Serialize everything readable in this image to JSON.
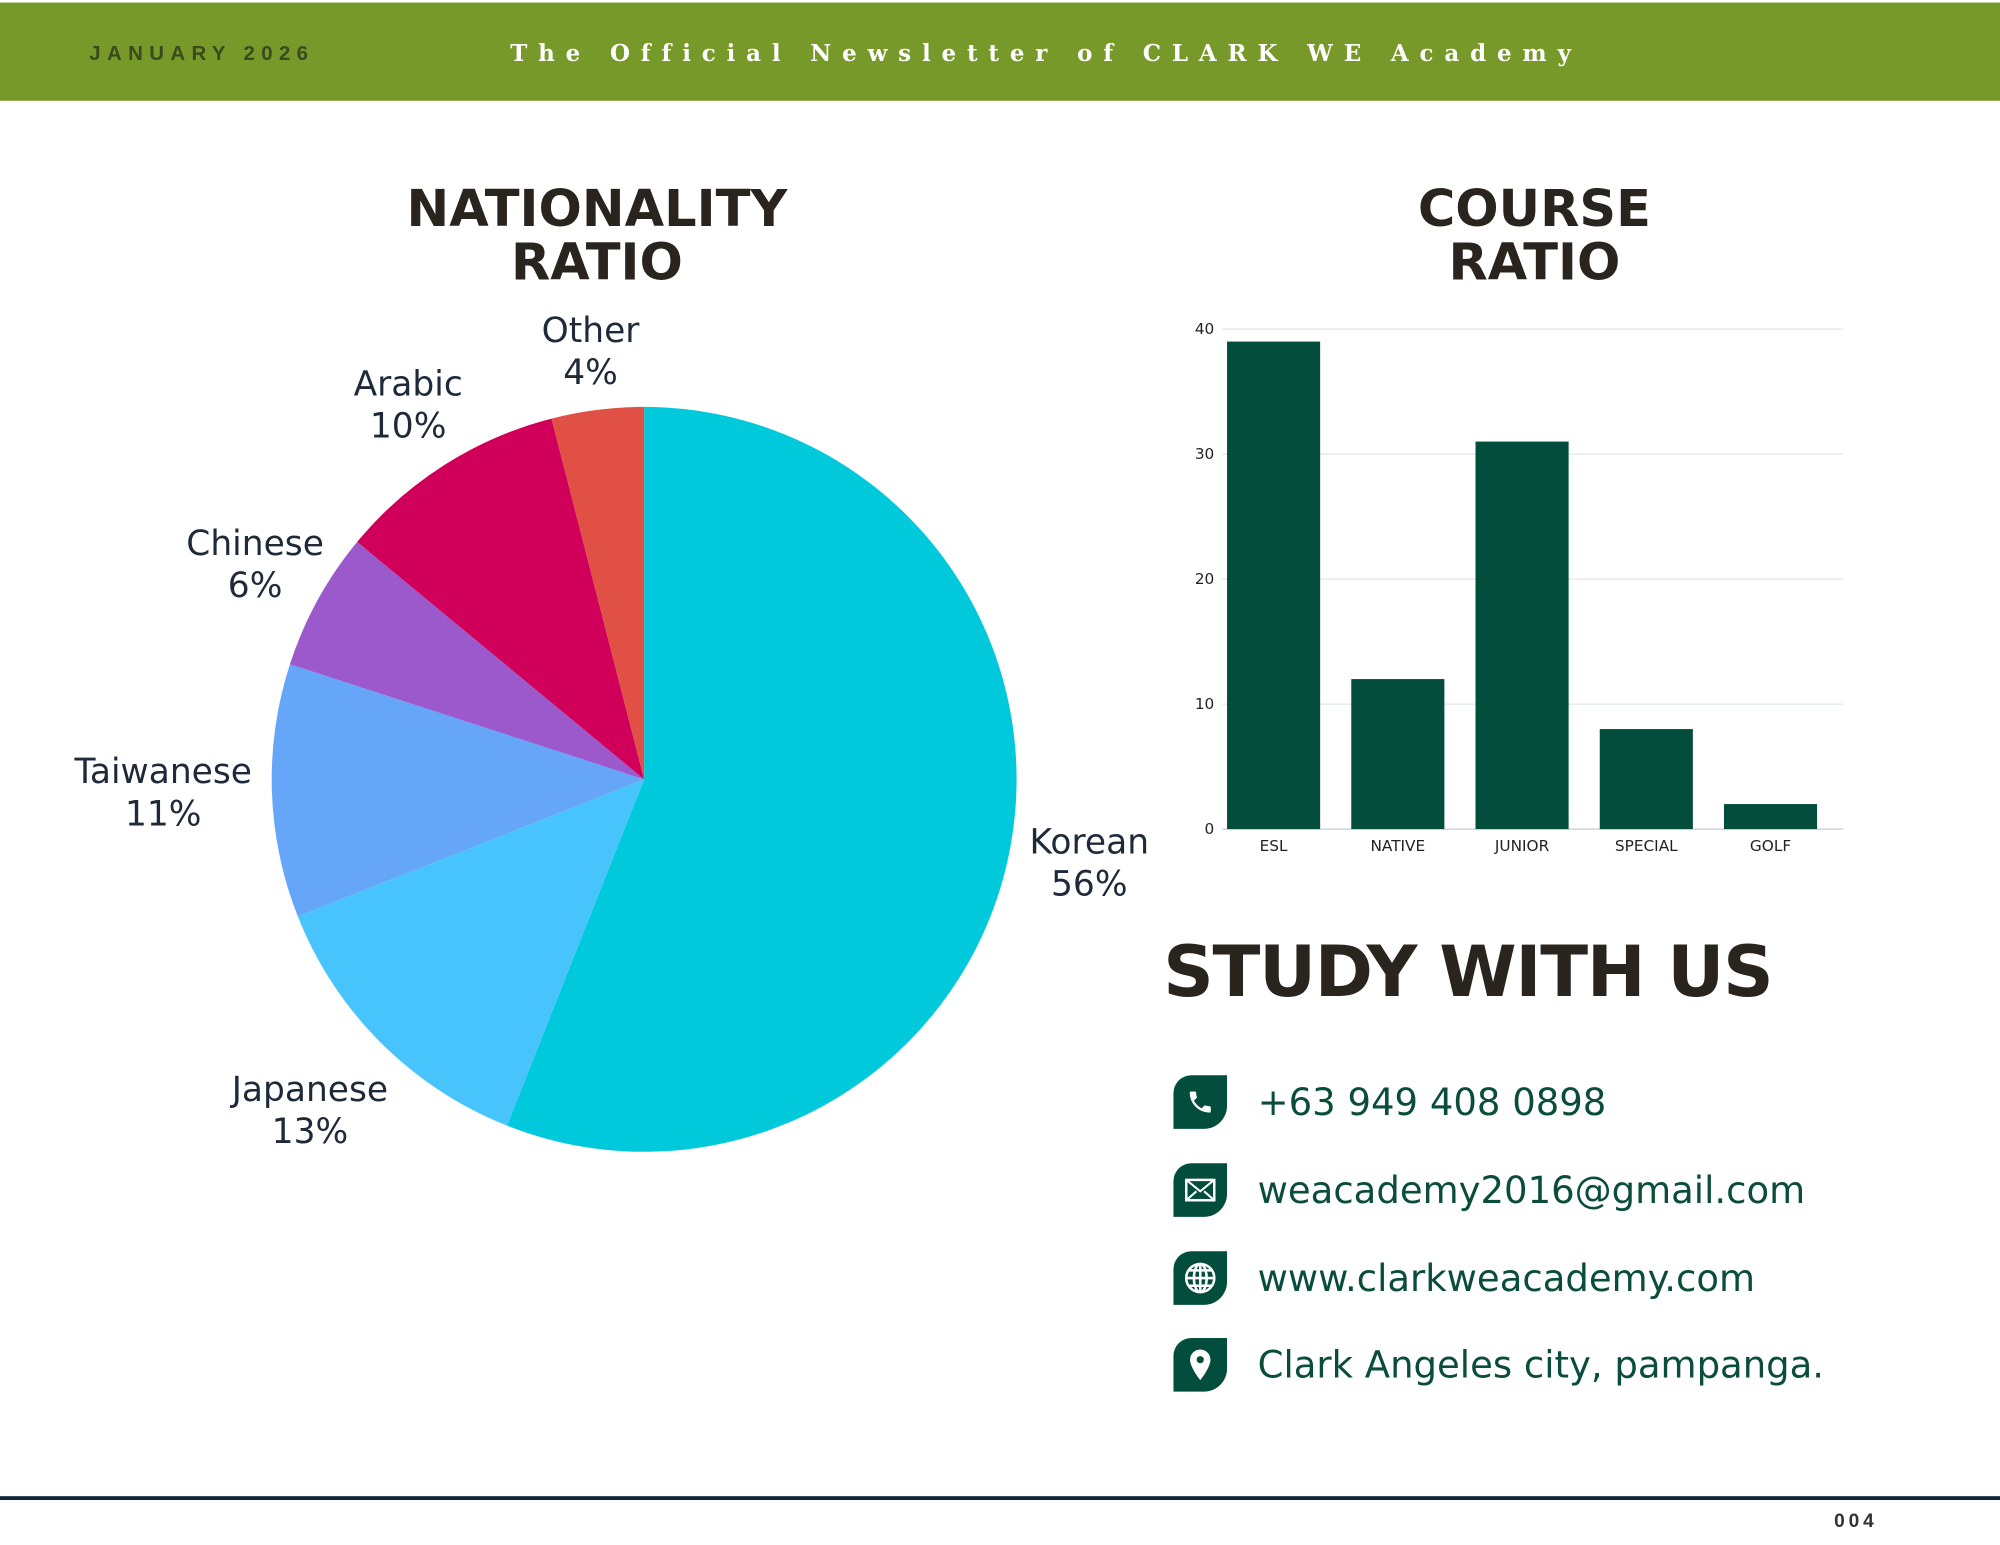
{
  "header": {
    "date": "JANUARY 2026",
    "tagline": "The Official Newsletter of CLARK WE Academy",
    "color": "#76992A"
  },
  "nationality": {
    "title_line1": "NATIONALITY",
    "title_line2": "RATIO"
  },
  "course": {
    "title_line1": "COURSE",
    "title_line2": "RATIO"
  },
  "chart_data": [
    {
      "type": "pie",
      "start": "top",
      "direction": "clockwise",
      "slices": [
        {
          "label": "Korean",
          "value": 56,
          "display": "56%",
          "color": "#00C9DB"
        },
        {
          "label": "Japanese",
          "value": 13,
          "display": "13%",
          "color": "#48C4FC"
        },
        {
          "label": "Taiwanese",
          "value": 11,
          "display": "11%",
          "color": "#65A6F9"
        },
        {
          "label": "Chinese",
          "value": 6,
          "display": "6%",
          "color": "#9B59CC"
        },
        {
          "label": "Arabic",
          "value": 10,
          "display": "10%",
          "color": "#D0005A"
        },
        {
          "label": "Other",
          "value": 4,
          "display": "4%",
          "color": "#E05045"
        }
      ]
    },
    {
      "type": "bar",
      "categories": [
        "ESL",
        "NATIVE",
        "JUNIOR",
        "SPECIAL",
        "GOLF"
      ],
      "values": [
        39,
        12,
        31,
        8,
        2
      ],
      "ylim": [
        0,
        40
      ],
      "yticks": [
        "0",
        "10",
        "20",
        "30",
        "40"
      ],
      "grid": true,
      "color": "#034D3C"
    }
  ],
  "contact": {
    "heading": "STUDY WITH US",
    "items": [
      {
        "icon": "phone-icon",
        "text": "+63 949 408 0898"
      },
      {
        "icon": "mail-icon",
        "text": "weacademy2016@gmail.com"
      },
      {
        "icon": "globe-icon",
        "text": "www.clarkweacademy.com"
      },
      {
        "icon": "location-pin-icon",
        "text": "Clark Angeles city, pampanga."
      }
    ]
  },
  "footer": {
    "page_number": "004"
  }
}
